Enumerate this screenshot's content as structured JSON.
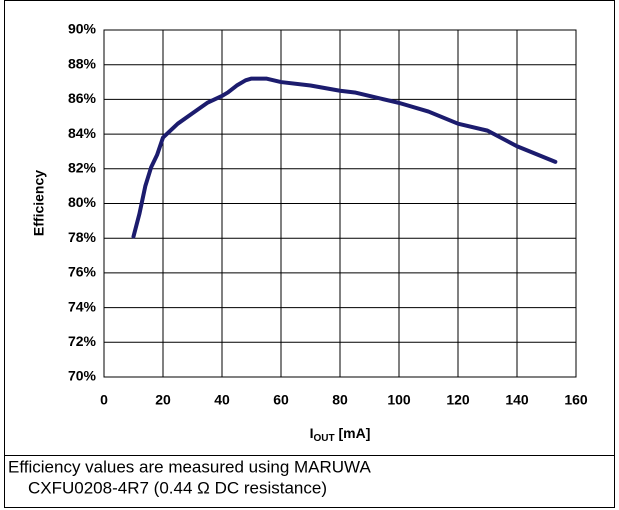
{
  "chart_data": {
    "type": "line",
    "y_label": "Efficiency",
    "x_label": {
      "main": "I",
      "sub": "OUT",
      "rest": " [mA]"
    },
    "caption": [
      "Efficiency values are measured using MARUWA",
      "CXFU0208-4R7 (0.44 Ω DC resistance)"
    ],
    "x": [
      10,
      12,
      14,
      16,
      18,
      20,
      25,
      30,
      35,
      40,
      42,
      45,
      48,
      50,
      55,
      60,
      70,
      80,
      85,
      90,
      100,
      110,
      120,
      130,
      140,
      153
    ],
    "series": [
      {
        "color": "#1c1c6e",
        "values": [
          78.1,
          79.4,
          81.0,
          82.1,
          82.8,
          83.8,
          84.6,
          85.2,
          85.8,
          86.2,
          86.4,
          86.8,
          87.1,
          87.2,
          87.2,
          87.0,
          86.8,
          86.5,
          86.4,
          86.2,
          85.8,
          85.3,
          84.6,
          84.2,
          83.3,
          82.4
        ]
      }
    ],
    "xlim": [
      0,
      160
    ],
    "xticks": [
      0,
      20,
      40,
      60,
      80,
      100,
      120,
      140,
      160
    ],
    "ylim": [
      70,
      90
    ],
    "yticks": [
      {
        "value": 70,
        "label": "70%"
      },
      {
        "value": 72,
        "label": "72%"
      },
      {
        "value": 74,
        "label": "74%"
      },
      {
        "value": 76,
        "label": "76%"
      },
      {
        "value": 78,
        "label": "78%"
      },
      {
        "value": 80,
        "label": "80%"
      },
      {
        "value": 82,
        "label": "82%"
      },
      {
        "value": 84,
        "label": "84%"
      },
      {
        "value": 86,
        "label": "86%"
      },
      {
        "value": 88,
        "label": "88%"
      },
      {
        "value": 90,
        "label": "90%"
      }
    ],
    "grid": true
  }
}
